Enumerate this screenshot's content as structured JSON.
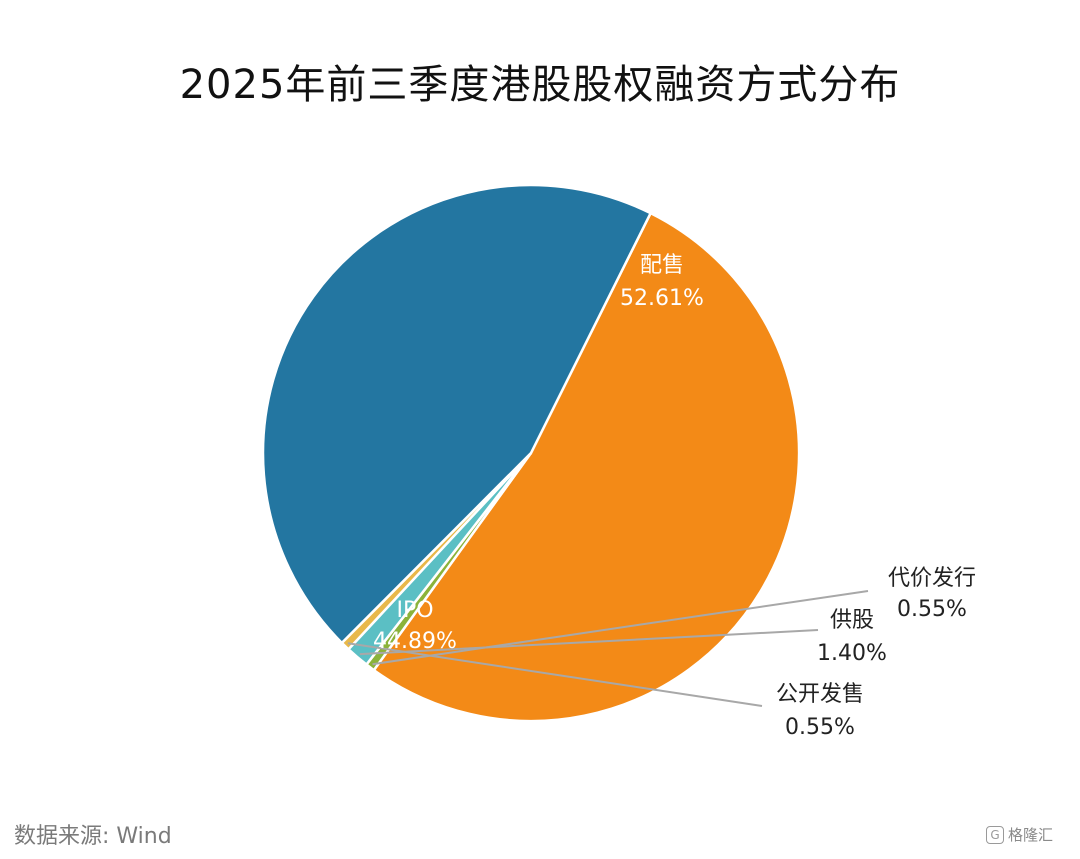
{
  "chart_data": {
    "type": "pie",
    "title": "2025年前三季度港股股权融资方式分布",
    "slices": [
      {
        "label": "配售",
        "value": 52.61,
        "value_label": "52.61%",
        "color": "#f38a17"
      },
      {
        "label": "代价发行",
        "value": 0.55,
        "value_label": "0.55%",
        "color": "#8bb33a"
      },
      {
        "label": "供股",
        "value": 1.4,
        "value_label": "1.40%",
        "color": "#5bbfc4"
      },
      {
        "label": "公开发售",
        "value": 0.55,
        "value_label": "0.55%",
        "color": "#e8b84a"
      },
      {
        "label": "IPO",
        "value": 44.89,
        "value_label": "44.89%",
        "color": "#2376a1"
      }
    ],
    "watermark": "Wind"
  },
  "footer": {
    "source": "数据来源: Wind",
    "logo_text": "格隆汇",
    "logo_mark": "G"
  }
}
